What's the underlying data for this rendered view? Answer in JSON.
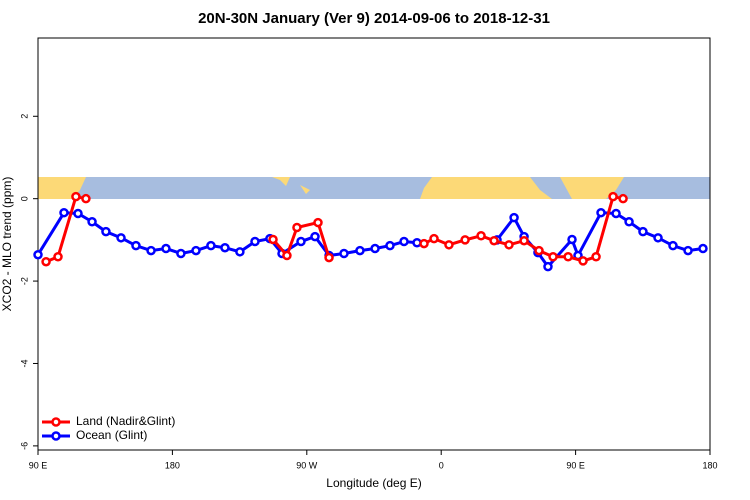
{
  "chart_data": {
    "type": "line",
    "title": "20N-30N January (Ver 9)   2014-09-06 to 2018-12-31",
    "x_label": "Longitude (deg E)",
    "y_label": "XCO2 - MLO trend (ppm)",
    "xlim": [
      90,
      540
    ],
    "ylim": [
      -6.1,
      3.9
    ],
    "xticks": [
      {
        "value": 90,
        "label": "90 E"
      },
      {
        "value": 180,
        "label": "180"
      },
      {
        "value": 270,
        "label": "90 W"
      },
      {
        "value": 360,
        "label": "0"
      },
      {
        "value": 450,
        "label": "90 E"
      },
      {
        "value": 540,
        "label": "180"
      }
    ],
    "yticks": [
      -6,
      -4,
      -2,
      0,
      2
    ],
    "legend": "bottom-left",
    "series": [
      {
        "name": "Ocean (Glint)",
        "color": "#0000ff",
        "x": [
          90,
          107.4,
          116.8,
          126.2,
          135.5,
          145.6,
          155.6,
          165.7,
          175.7,
          185.7,
          195.8,
          205.8,
          215.2,
          225.2,
          235.3,
          245.3,
          253.4,
          266.1,
          275.5,
          284.9,
          294.9,
          305.6,
          315.7,
          325.7,
          335.1,
          343.8,
          null,
          397.4,
          408.8,
          415.5,
          424.8,
          431.5,
          447.6,
          451.6,
          467.0,
          477.1,
          485.8,
          495.1,
          505.2,
          515.2,
          525.3,
          535.3
        ],
        "values": [
          -1.36,
          -0.34,
          -0.36,
          -0.56,
          -0.8,
          -0.95,
          -1.14,
          -1.26,
          -1.21,
          -1.33,
          -1.26,
          -1.14,
          -1.19,
          -1.29,
          -1.04,
          -0.97,
          -1.33,
          -1.04,
          -0.92,
          -1.38,
          -1.33,
          -1.26,
          -1.21,
          -1.14,
          -1.04,
          -1.07,
          null,
          -1.0,
          -0.46,
          -0.92,
          -1.31,
          -1.65,
          -0.99,
          -1.38,
          -0.34,
          -0.36,
          -0.56,
          -0.8,
          -0.95,
          -1.14,
          -1.26,
          -1.21
        ]
      },
      {
        "name": "Land (Nadir&Glint)",
        "color": "#ff0000",
        "x": [
          95.4,
          103.4,
          115.4,
          122.1,
          null,
          247.4,
          256.7,
          263.4,
          277.5,
          284.9,
          null,
          348.5,
          355.2,
          365.2,
          376.0,
          386.7,
          395.4,
          405.4,
          415.5,
          425.5,
          434.9,
          445.0,
          455.0,
          463.7,
          475.1,
          481.8
        ],
        "values": [
          -1.53,
          -1.41,
          0.05,
          0.0,
          null,
          -0.99,
          -1.38,
          -0.7,
          -0.58,
          -1.43,
          null,
          -1.09,
          -0.97,
          -1.12,
          -1.0,
          -0.9,
          -1.02,
          -1.12,
          -1.02,
          -1.26,
          -1.41,
          -1.41,
          -1.51,
          -1.41,
          0.05,
          0.0
        ]
      }
    ]
  }
}
